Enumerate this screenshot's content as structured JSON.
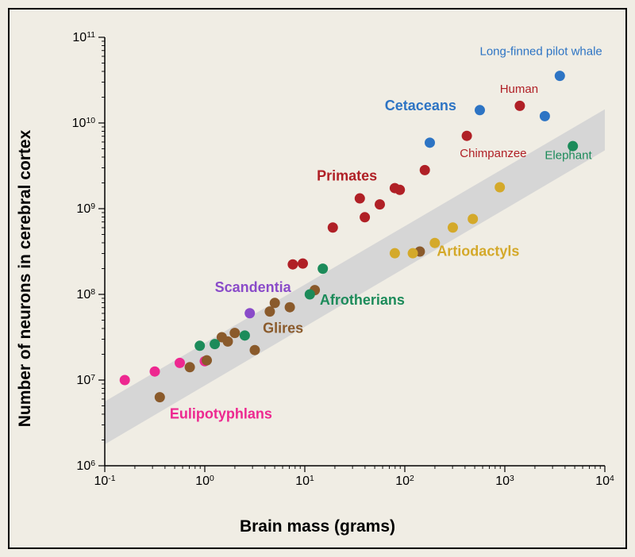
{
  "chart": {
    "type": "scatter",
    "background_color": "#f0ede4",
    "band_color": "#d6d6d6",
    "frame_border": "#000000",
    "xlabel": "Brain mass (grams)",
    "ylabel": "Number of neurons in cerebral cortex",
    "label_fontsize": 21,
    "tick_fontsize": 16,
    "xscale": "log",
    "yscale": "log",
    "xlim_exp": [
      -1,
      4
    ],
    "ylim_exp": [
      6,
      11
    ],
    "x_tick_exps": [
      -1,
      0,
      1,
      2,
      3,
      4
    ],
    "y_tick_exps": [
      6,
      7,
      8,
      9,
      10,
      11
    ],
    "marker_radius": 6.5,
    "band": {
      "x1_exp": -1,
      "y1_low_exp": 6.25,
      "y1_high_exp": 6.75,
      "x2_exp": 4,
      "y2_low_exp": 9.68,
      "y2_high_exp": 10.16
    },
    "groups": {
      "Eulipotyphlans": {
        "color": "#ed2890",
        "label_x_exp": -0.35,
        "label_y_exp": 6.55
      },
      "Scandentia": {
        "color": "#8a4bc9",
        "label_x_exp": 0.1,
        "label_y_exp": 8.03
      },
      "Glires": {
        "color": "#8a5a2b",
        "label_x_exp": 0.58,
        "label_y_exp": 7.55
      },
      "Afrotherians": {
        "color": "#1c8b5a",
        "label_x_exp": 1.15,
        "label_y_exp": 7.88
      },
      "Primates": {
        "color": "#b02026",
        "label_x_exp": 1.12,
        "label_y_exp": 9.33
      },
      "Artiodactyls": {
        "color": "#d4a92a",
        "label_x_exp": 2.32,
        "label_y_exp": 8.45
      },
      "Cetaceans": {
        "color": "#2d74c4",
        "label_x_exp": 1.8,
        "label_y_exp": 10.15
      }
    },
    "species_labels": [
      {
        "text": "Long-finned pilot whale",
        "color": "#2d74c4",
        "x_exp": 2.75,
        "y_exp": 10.79
      },
      {
        "text": "Human",
        "color": "#b02026",
        "x_exp": 2.95,
        "y_exp": 10.35
      },
      {
        "text": "Chimpanzee",
        "color": "#b02026",
        "x_exp": 2.55,
        "y_exp": 9.6
      },
      {
        "text": "Elephant",
        "color": "#1c8b5a",
        "x_exp": 3.4,
        "y_exp": 9.58
      }
    ],
    "points": [
      {
        "group": "Eulipotyphlans",
        "x_exp": -0.8,
        "y_exp": 7.0
      },
      {
        "group": "Eulipotyphlans",
        "x_exp": -0.5,
        "y_exp": 7.1
      },
      {
        "group": "Eulipotyphlans",
        "x_exp": -0.25,
        "y_exp": 7.2
      },
      {
        "group": "Eulipotyphlans",
        "x_exp": 0.0,
        "y_exp": 7.22
      },
      {
        "group": "Glires",
        "x_exp": -0.45,
        "y_exp": 6.8
      },
      {
        "group": "Glires",
        "x_exp": -0.15,
        "y_exp": 7.15
      },
      {
        "group": "Glires",
        "x_exp": 0.02,
        "y_exp": 7.23
      },
      {
        "group": "Glires",
        "x_exp": 0.17,
        "y_exp": 7.5
      },
      {
        "group": "Glires",
        "x_exp": 0.23,
        "y_exp": 7.45
      },
      {
        "group": "Glires",
        "x_exp": 0.3,
        "y_exp": 7.55
      },
      {
        "group": "Glires",
        "x_exp": 0.5,
        "y_exp": 7.35
      },
      {
        "group": "Glires",
        "x_exp": 0.65,
        "y_exp": 7.8
      },
      {
        "group": "Glires",
        "x_exp": 0.7,
        "y_exp": 7.9
      },
      {
        "group": "Glires",
        "x_exp": 0.85,
        "y_exp": 7.85
      },
      {
        "group": "Glires",
        "x_exp": 1.1,
        "y_exp": 8.05
      },
      {
        "group": "Glires",
        "x_exp": 2.15,
        "y_exp": 8.5
      },
      {
        "group": "Scandentia",
        "x_exp": 0.45,
        "y_exp": 7.78
      },
      {
        "group": "Afrotherians",
        "x_exp": -0.05,
        "y_exp": 7.4
      },
      {
        "group": "Afrotherians",
        "x_exp": 0.1,
        "y_exp": 7.42
      },
      {
        "group": "Afrotherians",
        "x_exp": 0.4,
        "y_exp": 7.52
      },
      {
        "group": "Afrotherians",
        "x_exp": 1.05,
        "y_exp": 8.0
      },
      {
        "group": "Afrotherians",
        "x_exp": 1.18,
        "y_exp": 8.3
      },
      {
        "group": "Afrotherians",
        "x_exp": 3.68,
        "y_exp": 9.73
      },
      {
        "group": "Artiodactyls",
        "x_exp": 1.9,
        "y_exp": 8.48
      },
      {
        "group": "Artiodactyls",
        "x_exp": 2.08,
        "y_exp": 8.48
      },
      {
        "group": "Artiodactyls",
        "x_exp": 2.3,
        "y_exp": 8.6
      },
      {
        "group": "Artiodactyls",
        "x_exp": 2.48,
        "y_exp": 8.78
      },
      {
        "group": "Artiodactyls",
        "x_exp": 2.68,
        "y_exp": 8.88
      },
      {
        "group": "Artiodactyls",
        "x_exp": 2.95,
        "y_exp": 9.25
      },
      {
        "group": "Primates",
        "x_exp": 0.88,
        "y_exp": 8.35
      },
      {
        "group": "Primates",
        "x_exp": 0.98,
        "y_exp": 8.36
      },
      {
        "group": "Primates",
        "x_exp": 1.28,
        "y_exp": 8.78
      },
      {
        "group": "Primates",
        "x_exp": 1.55,
        "y_exp": 9.12
      },
      {
        "group": "Primates",
        "x_exp": 1.6,
        "y_exp": 8.9
      },
      {
        "group": "Primates",
        "x_exp": 1.75,
        "y_exp": 9.05
      },
      {
        "group": "Primates",
        "x_exp": 1.9,
        "y_exp": 9.24
      },
      {
        "group": "Primates",
        "x_exp": 1.95,
        "y_exp": 9.22
      },
      {
        "group": "Primates",
        "x_exp": 2.2,
        "y_exp": 9.45
      },
      {
        "group": "Primates",
        "x_exp": 2.62,
        "y_exp": 9.85
      },
      {
        "group": "Primates",
        "x_exp": 3.15,
        "y_exp": 10.2
      },
      {
        "group": "Cetaceans",
        "x_exp": 2.25,
        "y_exp": 9.77
      },
      {
        "group": "Cetaceans",
        "x_exp": 2.75,
        "y_exp": 10.15
      },
      {
        "group": "Cetaceans",
        "x_exp": 3.4,
        "y_exp": 10.08
      },
      {
        "group": "Cetaceans",
        "x_exp": 3.55,
        "y_exp": 10.55
      }
    ]
  }
}
